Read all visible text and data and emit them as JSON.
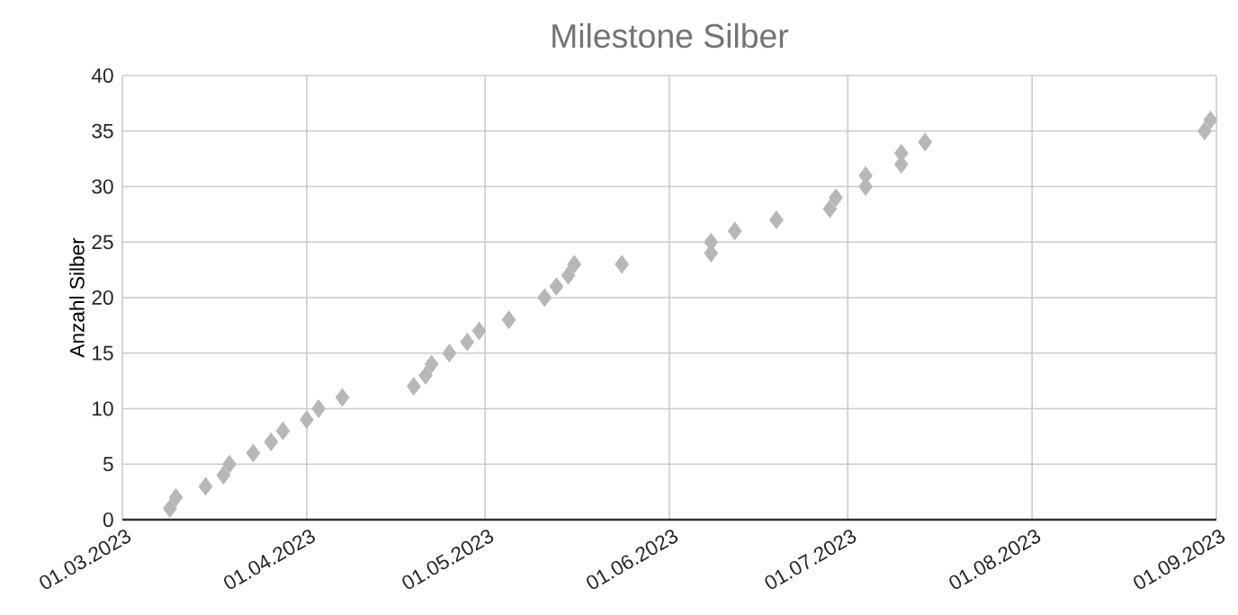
{
  "chart_data": {
    "type": "scatter",
    "title": "Milestone Silber",
    "ylabel": "Anzahl Silber",
    "x": [
      "2023-03-09",
      "2023-03-10",
      "2023-03-15",
      "2023-03-18",
      "2023-03-19",
      "2023-03-23",
      "2023-03-26",
      "2023-03-28",
      "2023-04-01",
      "2023-04-03",
      "2023-04-07",
      "2023-04-19",
      "2023-04-21",
      "2023-04-22",
      "2023-04-25",
      "2023-04-28",
      "2023-04-30",
      "2023-05-05",
      "2023-05-11",
      "2023-05-13",
      "2023-05-15",
      "2023-05-16",
      "2023-05-24",
      "2023-06-08",
      "2023-06-08",
      "2023-06-12",
      "2023-06-19",
      "2023-06-28",
      "2023-06-29",
      "2023-07-04",
      "2023-07-04",
      "2023-07-10",
      "2023-07-10",
      "2023-07-14",
      "2023-08-30",
      "2023-08-31"
    ],
    "values": [
      1,
      2,
      3,
      4,
      5,
      6,
      7,
      8,
      9,
      10,
      11,
      12,
      13,
      14,
      15,
      16,
      17,
      18,
      20,
      21,
      22,
      23,
      23,
      24,
      25,
      26,
      27,
      28,
      29,
      30,
      31,
      32,
      33,
      34,
      35,
      36
    ],
    "color": "#b7b7b7",
    "marker": "diamond",
    "xlim": [
      "2023-03-01",
      "2023-09-01"
    ],
    "xticks": [
      {
        "value": "2023-03-01",
        "label": "01.03.2023"
      },
      {
        "value": "2023-04-01",
        "label": "01.04.2023"
      },
      {
        "value": "2023-05-01",
        "label": "01.05.2023"
      },
      {
        "value": "2023-06-01",
        "label": "01.06.2023"
      },
      {
        "value": "2023-07-01",
        "label": "01.07.2023"
      },
      {
        "value": "2023-08-01",
        "label": "01.08.2023"
      },
      {
        "value": "2023-09-01",
        "label": "01.09.2023"
      }
    ],
    "ylim": [
      0,
      40
    ],
    "yticks": [
      0,
      5,
      10,
      15,
      20,
      25,
      30,
      35,
      40
    ],
    "grid": true
  }
}
